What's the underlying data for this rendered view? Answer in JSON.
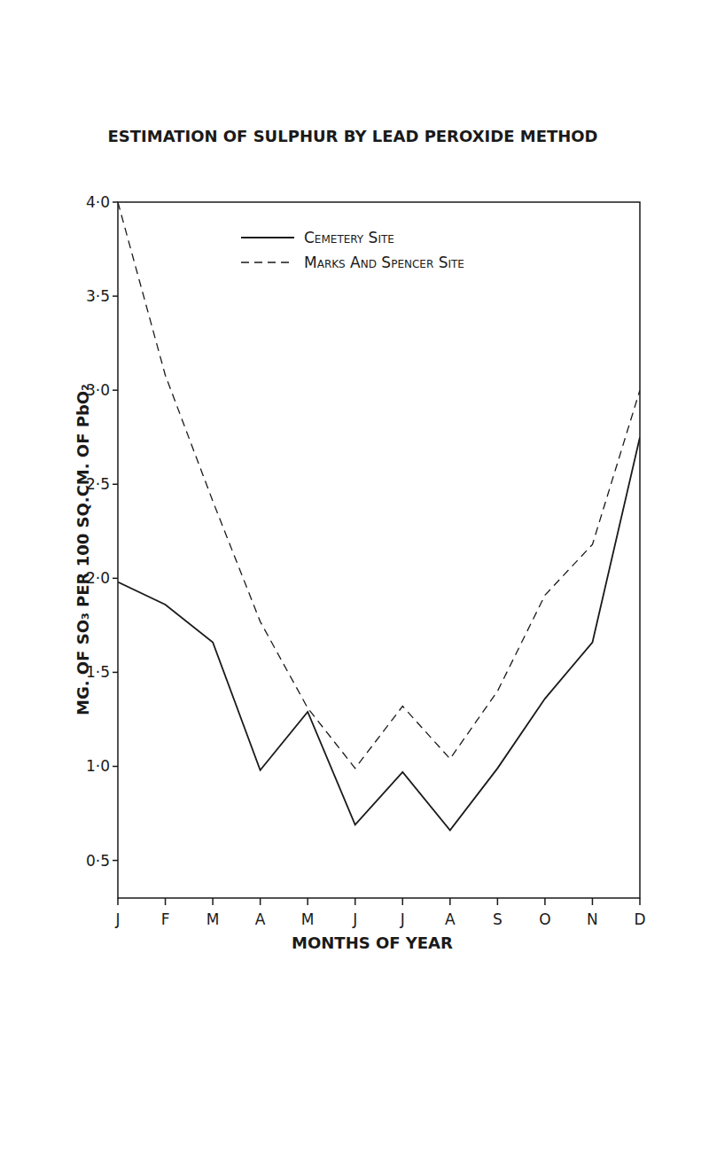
{
  "chart_data": {
    "type": "line",
    "title": "ESTIMATION OF SULPHUR BY LEAD PEROXIDE METHOD",
    "x_label": "MONTHS OF YEAR",
    "y_label": "MG. OF SO₃ PER 100 SQ.CM. OF PbO₂",
    "categories": [
      "J",
      "F",
      "M",
      "A",
      "M",
      "J",
      "J",
      "A",
      "S",
      "O",
      "N",
      "D"
    ],
    "series": [
      {
        "name": "Cemetery Site",
        "color": "#1a1a1a",
        "line_style": "solid",
        "values": [
          1.98,
          1.86,
          1.66,
          0.98,
          1.29,
          0.69,
          0.97,
          0.66,
          0.99,
          1.36,
          1.66,
          2.75
        ]
      },
      {
        "name": "Marks And Spencer Site",
        "color": "#1a1a1a",
        "line_style": "dashed",
        "values": [
          4.0,
          3.08,
          2.41,
          1.77,
          1.31,
          0.99,
          1.32,
          1.04,
          1.4,
          1.91,
          2.18,
          3.0
        ]
      }
    ],
    "ylim": [
      0.3,
      4.0
    ],
    "yticks": [
      {
        "value": 0.5,
        "label": "0·5"
      },
      {
        "value": 1.0,
        "label": "1·0"
      },
      {
        "value": 1.5,
        "label": "1·5"
      },
      {
        "value": 2.0,
        "label": "2·0"
      },
      {
        "value": 2.5,
        "label": "2·5"
      },
      {
        "value": 3.0,
        "label": "3·0"
      },
      {
        "value": 3.5,
        "label": "3·5"
      },
      {
        "value": 4.0,
        "label": "4·0"
      }
    ],
    "grid": false,
    "legend": "top"
  }
}
